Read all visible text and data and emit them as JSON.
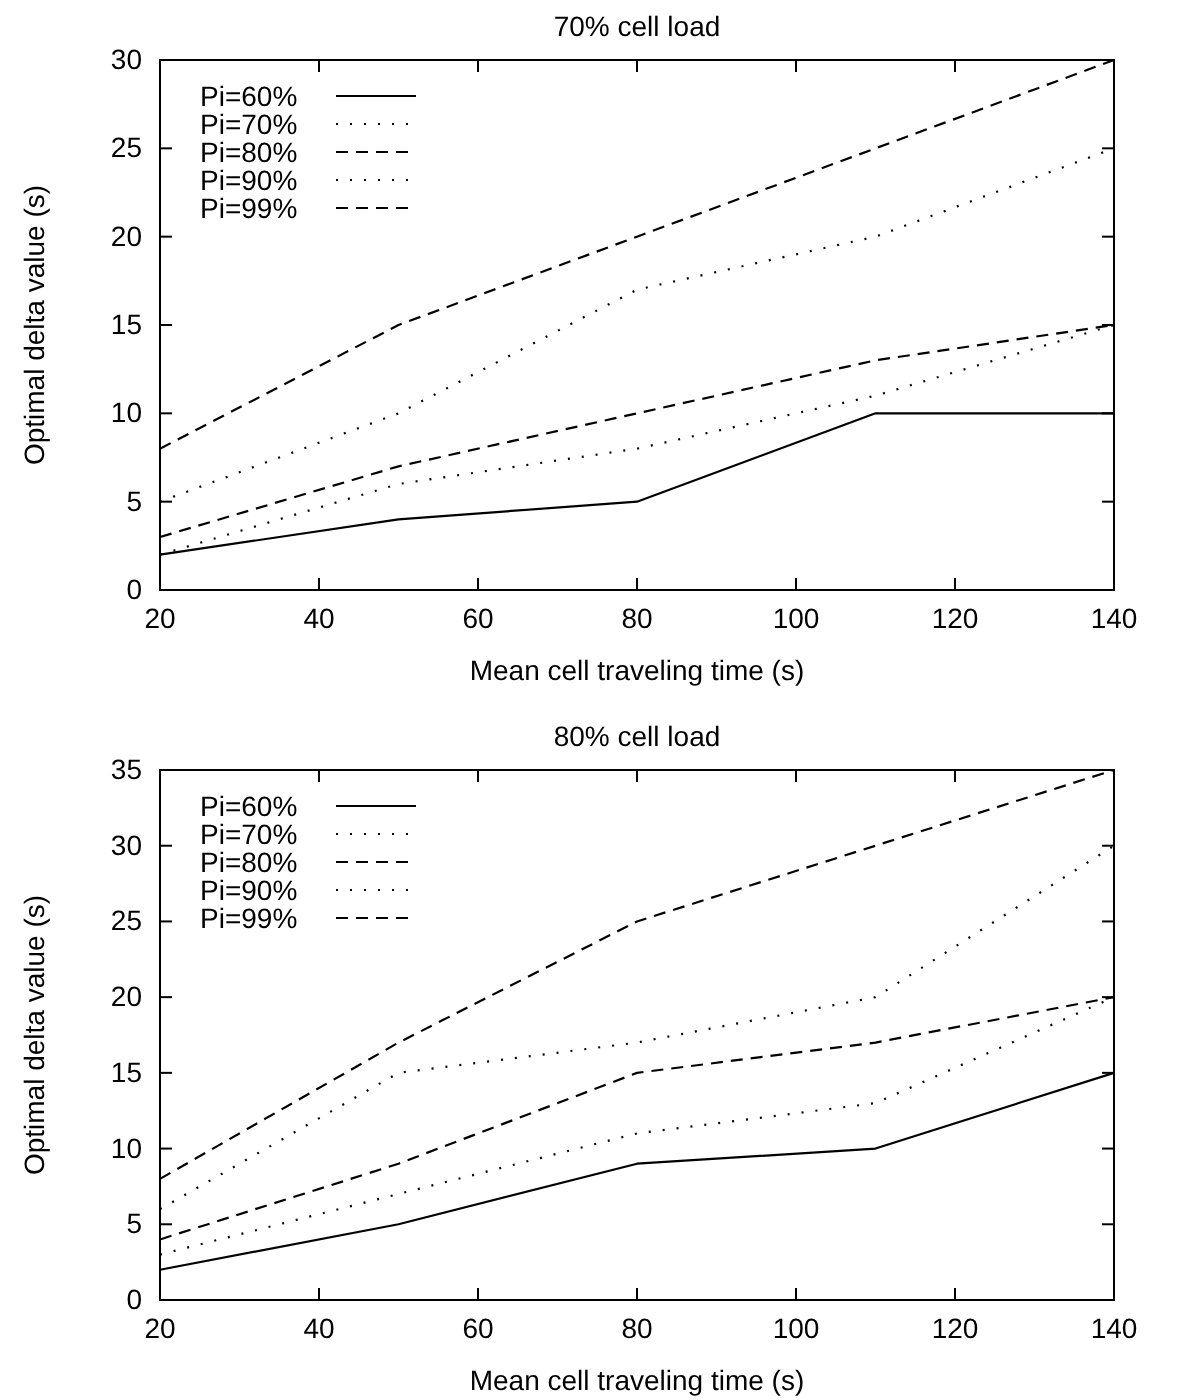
{
  "chart_data": [
    {
      "type": "line",
      "title": "70% cell load",
      "xlabel": "Mean cell traveling time (s)",
      "ylabel": "Optimal delta value (s)",
      "x": [
        20,
        50,
        80,
        110,
        140
      ],
      "xlim": [
        20,
        140
      ],
      "xticks": [
        20,
        40,
        60,
        80,
        100,
        120,
        140
      ],
      "ylim": [
        0,
        30
      ],
      "yticks": [
        0,
        5,
        10,
        15,
        20,
        25,
        30
      ],
      "grid": false,
      "legend": "top left",
      "marker": "none",
      "series": [
        {
          "name": "Pi=60%",
          "color": "#000000",
          "line_style": "solid",
          "values": [
            2,
            4,
            5,
            10,
            10
          ]
        },
        {
          "name": "Pi=70%",
          "color": "#000000",
          "line_style": "dotted",
          "values": [
            2,
            6,
            8,
            11,
            15
          ]
        },
        {
          "name": "Pi=80%",
          "color": "#000000",
          "line_style": "dashed",
          "values": [
            3,
            7,
            10,
            13,
            15
          ]
        },
        {
          "name": "Pi=90%",
          "color": "#000000",
          "line_style": "dotted",
          "values": [
            5,
            10,
            17,
            20,
            25
          ]
        },
        {
          "name": "Pi=99%",
          "color": "#000000",
          "line_style": "dashed",
          "values": [
            8,
            15,
            20,
            25,
            30
          ]
        }
      ]
    },
    {
      "type": "line",
      "title": "80% cell load",
      "xlabel": "Mean cell traveling time (s)",
      "ylabel": "Optimal delta value (s)",
      "x": [
        20,
        50,
        80,
        110,
        140
      ],
      "xlim": [
        20,
        140
      ],
      "xticks": [
        20,
        40,
        60,
        80,
        100,
        120,
        140
      ],
      "ylim": [
        0,
        35
      ],
      "yticks": [
        0,
        5,
        10,
        15,
        20,
        25,
        30,
        35
      ],
      "grid": false,
      "legend": "top left",
      "marker": "none",
      "series": [
        {
          "name": "Pi=60%",
          "color": "#000000",
          "line_style": "solid",
          "values": [
            2,
            5,
            9,
            10,
            15
          ]
        },
        {
          "name": "Pi=70%",
          "color": "#000000",
          "line_style": "dotted",
          "values": [
            3,
            7,
            11,
            13,
            20
          ]
        },
        {
          "name": "Pi=80%",
          "color": "#000000",
          "line_style": "dashed",
          "values": [
            4,
            9,
            15,
            17,
            20
          ]
        },
        {
          "name": "Pi=90%",
          "color": "#000000",
          "line_style": "dotted",
          "values": [
            6,
            15,
            17,
            20,
            30
          ]
        },
        {
          "name": "Pi=99%",
          "color": "#000000",
          "line_style": "dashed",
          "values": [
            8,
            17,
            25,
            30,
            35
          ]
        }
      ]
    }
  ]
}
